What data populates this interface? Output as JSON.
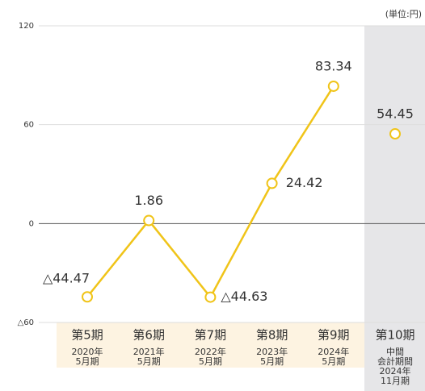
{
  "chart_data": {
    "type": "line",
    "unit_label": "(単位:円)",
    "categories": [
      [
        "第5期",
        "2020年",
        "5月期"
      ],
      [
        "第6期",
        "2021年",
        "5月期"
      ],
      [
        "第7期",
        "2022年",
        "5月期"
      ],
      [
        "第8期",
        "2023年",
        "5月期"
      ],
      [
        "第9期",
        "2024年",
        "5月期"
      ],
      [
        "第10期",
        "中間",
        "会計期間",
        "2024年",
        "11月期"
      ]
    ],
    "series": [
      {
        "color": "#f0c419",
        "values": [
          -44.47,
          1.86,
          -44.63,
          24.42,
          83.34,
          null
        ],
        "value_labels": [
          "△44.47",
          "1.86",
          "△44.63",
          "24.42",
          "83.34",
          null
        ]
      },
      {
        "color": "#f0c419",
        "values": [
          null,
          null,
          null,
          null,
          null,
          54.45
        ],
        "value_labels": [
          null,
          null,
          null,
          null,
          null,
          "54.45"
        ]
      }
    ],
    "ylim": [
      -60,
      120
    ],
    "yticks": [
      {
        "value": -60,
        "label": "△60"
      },
      0,
      60,
      120
    ],
    "grid": true
  }
}
